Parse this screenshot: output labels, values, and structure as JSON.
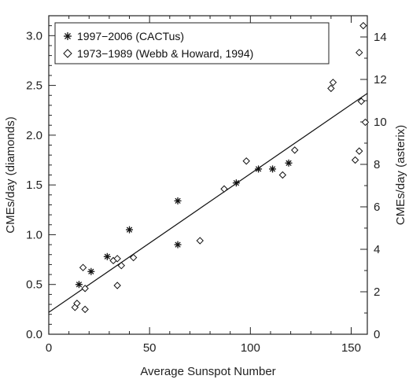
{
  "chart_data": {
    "type": "scatter",
    "xlabel": "Average Sunspot Number",
    "ylabel_left": "CMEs/day (diamonds)",
    "ylabel_right": "CMEs/day (asterix)",
    "xlim": [
      0,
      158
    ],
    "ylim_left": [
      0,
      3.2
    ],
    "ylim_right": [
      0,
      15
    ],
    "x_ticks": [
      "0",
      "50",
      "100",
      "150"
    ],
    "y_left_ticks": [
      "0.0",
      "0.5",
      "1.0",
      "1.5",
      "2.0",
      "2.5",
      "3.0"
    ],
    "y_right_ticks": [
      "0",
      "2",
      "4",
      "6",
      "8",
      "10",
      "12",
      "14"
    ],
    "legend": {
      "position": "top-left",
      "entries": [
        {
          "marker": "asterisk",
          "label": "1997−2006 (CACTus)"
        },
        {
          "marker": "diamond",
          "label": "1973−1989 (Webb & Howard, 1994)"
        }
      ]
    },
    "series": [
      {
        "name": "1997−2006 (CACTus)",
        "marker": "asterisk",
        "axis": "left",
        "points": [
          [
            15,
            0.5
          ],
          [
            21,
            0.63
          ],
          [
            29,
            0.78
          ],
          [
            40,
            1.05
          ],
          [
            64,
            1.34
          ],
          [
            64,
            0.9
          ],
          [
            93,
            1.52
          ],
          [
            104,
            1.66
          ],
          [
            111,
            1.66
          ],
          [
            119,
            1.72
          ]
        ]
      },
      {
        "name": "1973−1989 (Webb & Howard, 1994)",
        "marker": "diamond",
        "axis": "left",
        "points": [
          [
            13,
            0.27
          ],
          [
            14,
            0.31
          ],
          [
            17,
            0.67
          ],
          [
            18,
            0.46
          ],
          [
            18,
            0.25
          ],
          [
            32,
            0.74
          ],
          [
            34,
            0.76
          ],
          [
            34,
            0.49
          ],
          [
            36,
            0.69
          ],
          [
            42,
            0.77
          ],
          [
            75,
            0.94
          ],
          [
            87,
            1.46
          ],
          [
            98,
            1.74
          ],
          [
            116,
            1.6
          ],
          [
            122,
            1.85
          ],
          [
            140,
            2.47
          ],
          [
            141,
            2.53
          ],
          [
            152,
            1.75
          ],
          [
            154,
            1.84
          ],
          [
            154,
            2.83
          ],
          [
            155,
            2.34
          ],
          [
            156,
            3.1
          ],
          [
            157,
            2.13
          ]
        ]
      }
    ],
    "fit_line": {
      "x": [
        0,
        158
      ],
      "y": [
        0.22,
        2.42
      ]
    }
  }
}
